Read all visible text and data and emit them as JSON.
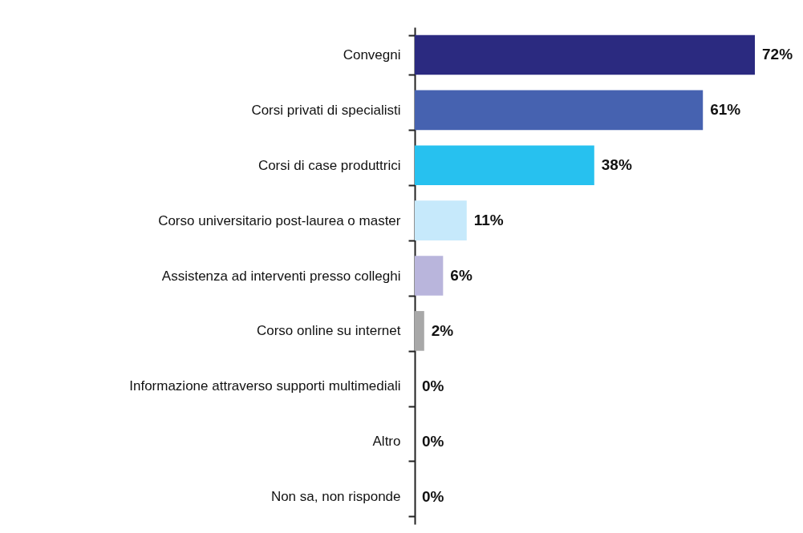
{
  "chart_data": {
    "type": "bar",
    "orientation": "horizontal",
    "categories": [
      "Convegni",
      "Corsi privati di specialisti",
      "Corsi di case produttrici",
      "Corso universitario post-laurea  o master",
      "Assistenza ad interventi presso colleghi",
      "Corso online su internet",
      "Informazione attraverso supporti multimediali",
      "Altro",
      "Non sa, non risponde"
    ],
    "values": [
      72,
      61,
      38,
      11,
      6,
      2,
      0,
      0,
      0
    ],
    "colors": [
      "#2b2a80",
      "#4662b0",
      "#27c1ef",
      "#c6e9fb",
      "#b9b5dc",
      "#a8a8a8",
      "#a8a8a8",
      "#a8a8a8",
      "#a8a8a8"
    ],
    "value_labels": [
      "72%",
      "61%",
      "38%",
      "11%",
      "6%",
      "2%",
      "0%",
      "0%",
      "0%"
    ]
  }
}
